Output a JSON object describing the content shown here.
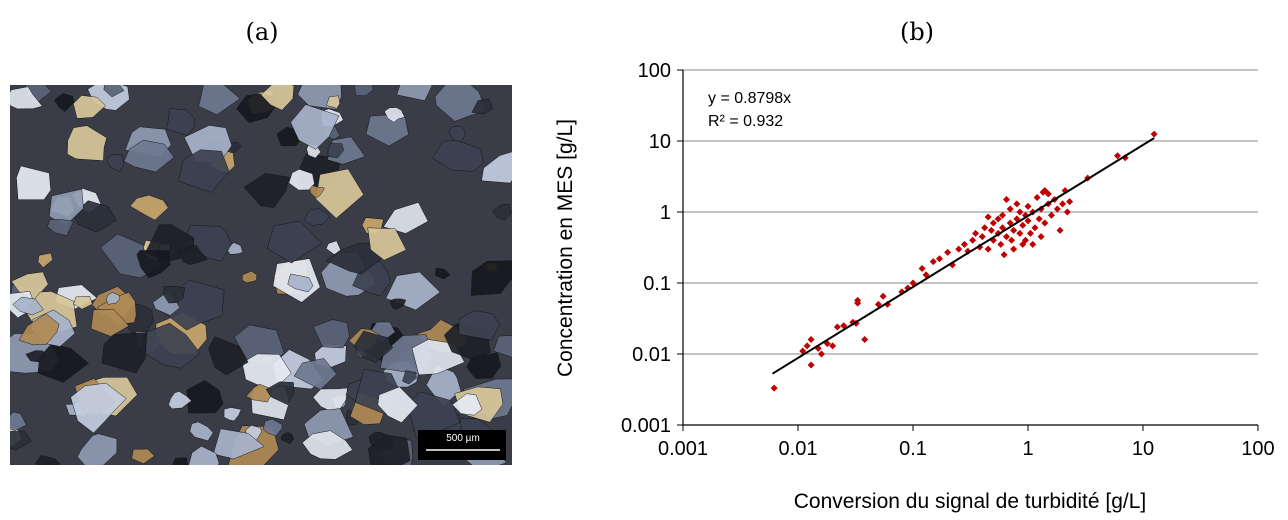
{
  "panel_labels": [
    "(a)",
    "(b)"
  ],
  "image": {
    "scale_bar": "500 µm"
  },
  "chart_data": {
    "type": "scatter",
    "x_label": "Conversion du signal de turbidité [g/L]",
    "y_label": "Concentration en MES [g/L]",
    "log_x": true,
    "log_y": true,
    "grid": "y",
    "color": "#c00000",
    "xlim": [
      0.001,
      100
    ],
    "xticks": [
      0.001,
      0.01,
      0.1,
      1,
      10,
      100
    ],
    "ylim": [
      0.001,
      100
    ],
    "yticks": [
      0.001,
      0.01,
      0.1,
      1,
      10,
      100
    ],
    "trendline": {
      "slope": 0.8798,
      "x": [
        0.006,
        12.5
      ],
      "equation": "y = 0.8798x",
      "r2": "R² = 0.932"
    },
    "x": [
      0.0062,
      0.011,
      0.012,
      0.013,
      0.013,
      0.015,
      0.016,
      0.018,
      0.02,
      0.022,
      0.025,
      0.03,
      0.032,
      0.033,
      0.033,
      0.038,
      0.05,
      0.055,
      0.06,
      0.08,
      0.09,
      0.1,
      0.12,
      0.13,
      0.15,
      0.17,
      0.2,
      0.22,
      0.25,
      0.28,
      0.3,
      0.33,
      0.35,
      0.38,
      0.4,
      0.42,
      0.45,
      0.48,
      0.5,
      0.5,
      0.55,
      0.58,
      0.6,
      0.6,
      0.65,
      0.65,
      0.7,
      0.7,
      0.72,
      0.75,
      0.8,
      0.8,
      0.85,
      0.85,
      0.9,
      0.9,
      0.95,
      1.0,
      1.0,
      1.05,
      1.1,
      1.15,
      1.2,
      1.25,
      1.3,
      1.3,
      1.4,
      1.4,
      1.5,
      1.5,
      1.6,
      1.7,
      1.8,
      1.9,
      2.0,
      2.1,
      2.2,
      2.3,
      0.75,
      0.95,
      1.1,
      0.55,
      3.3,
      6.0,
      7.0,
      12.5,
      0.45,
      0.62,
      1.35
    ],
    "values": [
      0.0033,
      0.011,
      0.013,
      0.007,
      0.016,
      0.012,
      0.01,
      0.014,
      0.013,
      0.024,
      0.025,
      0.028,
      0.027,
      0.057,
      0.052,
      0.016,
      0.05,
      0.065,
      0.05,
      0.075,
      0.085,
      0.1,
      0.16,
      0.13,
      0.2,
      0.22,
      0.27,
      0.18,
      0.3,
      0.35,
      0.28,
      0.4,
      0.5,
      0.32,
      0.45,
      0.6,
      0.3,
      0.55,
      0.7,
      0.4,
      0.5,
      0.35,
      0.9,
      0.6,
      0.45,
      1.5,
      0.7,
      1.1,
      0.4,
      0.55,
      0.8,
      1.3,
      0.5,
      1.0,
      0.65,
      0.35,
      0.9,
      0.75,
      1.2,
      0.5,
      1.0,
      0.6,
      1.6,
      0.8,
      0.45,
      1.1,
      2.0,
      0.7,
      1.3,
      1.8,
      0.9,
      1.5,
      1.1,
      0.55,
      1.3,
      2.0,
      1.0,
      1.4,
      0.3,
      0.4,
      0.35,
      0.8,
      3.0,
      6.2,
      5.8,
      12.5,
      0.85,
      0.25,
      1.9
    ]
  }
}
